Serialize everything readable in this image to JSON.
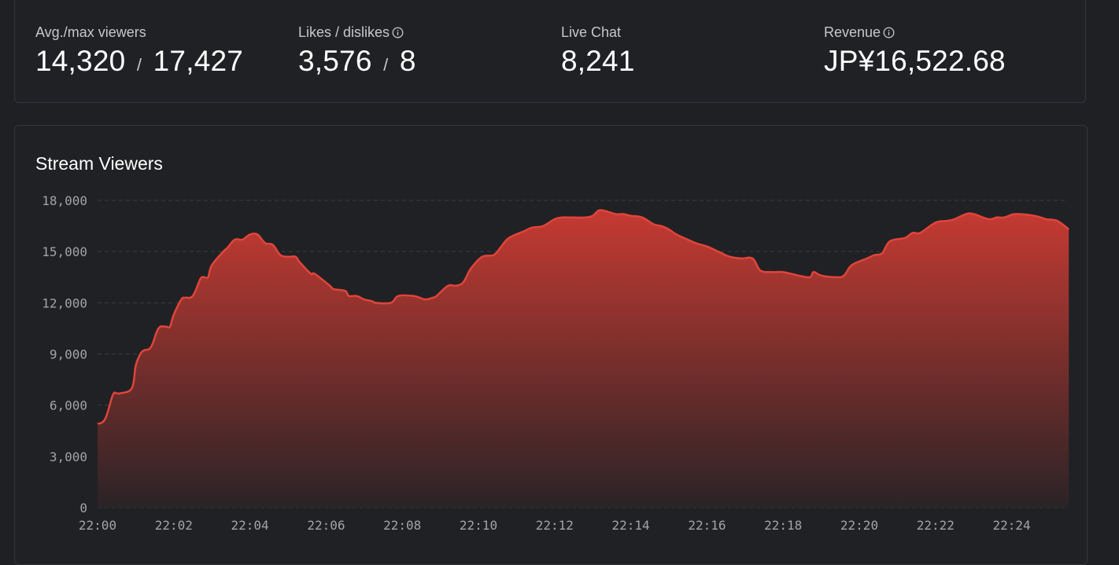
{
  "stats": [
    {
      "label": "Avg./max viewers",
      "value": "14,320",
      "separator": "/",
      "value2": "17,427",
      "info": false
    },
    {
      "label": "Likes / dislikes",
      "value": "3,576",
      "separator": "/",
      "value2": "8",
      "info": true
    },
    {
      "label": "Live Chat",
      "value": "8,241",
      "info": false
    },
    {
      "label": "Revenue",
      "value": "JP¥16,522.68",
      "info": true
    }
  ],
  "colors": {
    "line": "#e0453a",
    "fill_top": "#c63a32",
    "fill_bottom": "#2a2326",
    "grid": "#3c3d42"
  },
  "chart_data": {
    "type": "area",
    "title": "Stream Viewers",
    "x_tick_labels": [
      "22:00",
      "22:02",
      "22:04",
      "22:06",
      "22:08",
      "22:10",
      "22:12",
      "22:14",
      "22:16",
      "22:18",
      "22:20",
      "22:22",
      "22:24"
    ],
    "y_tick_labels": [
      "0",
      "3,000",
      "6,000",
      "9,000",
      "12,000",
      "15,000",
      "18,000"
    ],
    "ylim": [
      0,
      18000
    ],
    "xlim_minutes": [
      0,
      25.5
    ],
    "grid": true,
    "series": [
      {
        "x_minutes": [
          0,
          0.2,
          0.4,
          0.5,
          0.6,
          0.9,
          1.0,
          1.1,
          1.2,
          1.4,
          1.6,
          1.8,
          1.9,
          2.0,
          2.2,
          2.3,
          2.5,
          2.7,
          2.8,
          2.9,
          3.0,
          3.3,
          3.4,
          3.6,
          3.8,
          4.0,
          4.2,
          4.4,
          4.6,
          4.8,
          5.0,
          5.2,
          5.3,
          5.6,
          5.7,
          6.1,
          6.2,
          6.5,
          6.6,
          6.8,
          7.0,
          7.2,
          7.3,
          7.7,
          7.9,
          8.3,
          8.6,
          8.8,
          8.9,
          9.2,
          9.4,
          9.6,
          9.8,
          10.1,
          10.4,
          10.6,
          10.8,
          11.2,
          11.4,
          11.7,
          12.0,
          12.2,
          12.4,
          12.8,
          13.0,
          13.2,
          13.6,
          13.8,
          14.0,
          14.3,
          14.6,
          14.8,
          15.0,
          15.2,
          15.5,
          15.7,
          16.0,
          16.3,
          16.6,
          16.9,
          17.2,
          17.4,
          17.7,
          18.0,
          18.4,
          18.7,
          18.8,
          19.0,
          19.4,
          19.6,
          19.8,
          20.2,
          20.4,
          20.6,
          20.8,
          21.2,
          21.4,
          21.6,
          22.0,
          22.3,
          22.5,
          22.8,
          23.0,
          23.4,
          23.6,
          23.8,
          24.1,
          24.6,
          24.9,
          25.2,
          25.5
        ],
        "values": [
          4900,
          5200,
          6600,
          6700,
          6700,
          7000,
          8300,
          8900,
          9200,
          9400,
          10500,
          10600,
          10600,
          11300,
          12200,
          12300,
          12400,
          13400,
          13500,
          13500,
          14200,
          15000,
          15200,
          15700,
          15700,
          16000,
          16000,
          15500,
          15400,
          14800,
          14700,
          14700,
          14400,
          13700,
          13700,
          13000,
          12800,
          12700,
          12400,
          12400,
          12200,
          12100,
          12000,
          12000,
          12400,
          12400,
          12200,
          12300,
          12400,
          13000,
          13000,
          13200,
          14000,
          14700,
          14800,
          15300,
          15800,
          16200,
          16400,
          16500,
          16900,
          17000,
          17000,
          17000,
          17100,
          17427,
          17200,
          17200,
          17100,
          17000,
          16600,
          16500,
          16300,
          16000,
          15700,
          15500,
          15300,
          15000,
          14700,
          14600,
          14600,
          13900,
          13800,
          13800,
          13600,
          13500,
          13800,
          13600,
          13500,
          13600,
          14200,
          14600,
          14800,
          14900,
          15600,
          15800,
          16100,
          16100,
          16700,
          16800,
          16900,
          17200,
          17200,
          16900,
          17000,
          17000,
          17200,
          17100,
          16900,
          16800,
          16300
        ]
      }
    ]
  }
}
